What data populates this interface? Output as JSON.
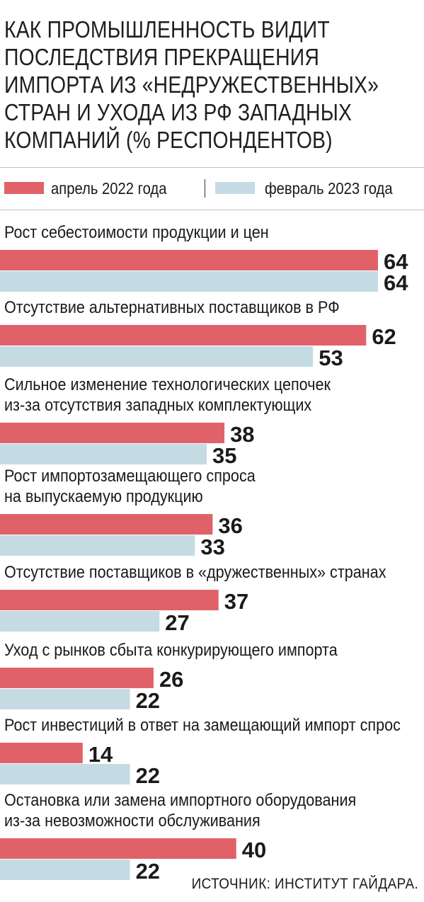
{
  "title": "КАК ПРОМЫШЛЕННОСТЬ ВИДИТ ПОСЛЕДСТВИЯ ПРЕКРАЩЕНИЯ ИМПОРТА ИЗ «НЕДРУЖЕСТВЕННЫХ» СТРАН И УХОДА ИЗ РФ ЗАПАДНЫХ КОМПАНИЙ (% РЕСПОНДЕНТОВ)",
  "source": "ИСТОЧНИК: ИНСТИТУТ ГАЙДАРА.",
  "colors": {
    "series1": "#e06268",
    "series2": "#c5dbe4"
  },
  "chart_data": {
    "type": "bar",
    "orientation": "horizontal",
    "title": "КАК ПРОМЫШЛЕННОСТЬ ВИДИТ ПОСЛЕДСТВИЯ ПРЕКРАЩЕНИЯ ИМПОРТА ИЗ «НЕДРУЖЕСТВЕННЫХ» СТРАН И УХОДА ИЗ РФ ЗАПАДНЫХ КОМПАНИЙ (% РЕСПОНДЕНТОВ)",
    "xlim": [
      0,
      64
    ],
    "legend_position": "top",
    "grid": false,
    "categories": [
      [
        "Рост себестоимости продукции и цен"
      ],
      [
        "Отсутствие альтернативных поставщиков в РФ"
      ],
      [
        "Сильное изменение технологических цепочек",
        "из-за отсутствия западных комплектующих"
      ],
      [
        "Рост импортозамещающего спроса",
        "на выпускаемую продукцию"
      ],
      [
        "Отсутствие поставщиков в «дружественных» странах"
      ],
      [
        "Уход с рынков сбыта конкурирующего импорта"
      ],
      [
        "Рост инвестиций в ответ на замещающий импорт спрос"
      ],
      [
        "Остановка или замена импортного оборудования",
        "из-за невозможности обслуживания"
      ]
    ],
    "series": [
      {
        "name": "апрель 2022 года",
        "color": "#e06268",
        "values": [
          64,
          62,
          38,
          36,
          37,
          26,
          14,
          40
        ]
      },
      {
        "name": "февраль 2023 года",
        "color": "#c5dbe4",
        "values": [
          64,
          53,
          35,
          33,
          27,
          22,
          22,
          22
        ]
      }
    ]
  }
}
